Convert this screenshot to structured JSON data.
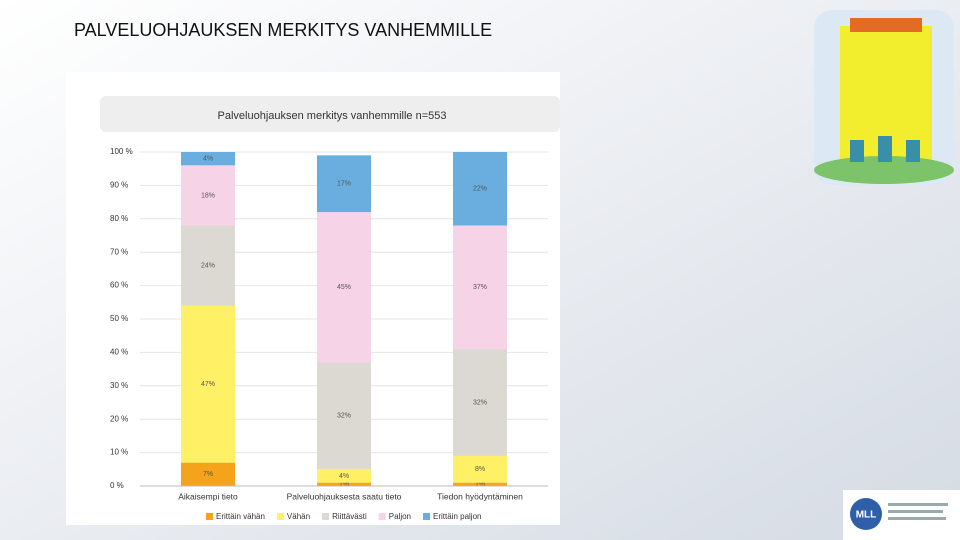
{
  "slide_title": "PALVELUOHJAUKSEN MERKITYS VANHEMMILLE",
  "logo": "MLL",
  "chart_data": {
    "type": "stacked_bar",
    "title": "Palveluohjauksen merkitys vanhemmille n=553",
    "categories": [
      "Aikaisempi tieto",
      "Palveluohjauksesta saatu tieto",
      "Tiedon hyödyntäminen"
    ],
    "series": [
      {
        "name": "Erittäin vähän",
        "color": "#f5a31a",
        "values": [
          7,
          1,
          1
        ],
        "value_labels": [
          "7%",
          "1%",
          "1%"
        ]
      },
      {
        "name": "Vähän",
        "color": "#fff066",
        "values": [
          47,
          4,
          8
        ],
        "value_labels": [
          "47%",
          "4%",
          "8%"
        ]
      },
      {
        "name": "Riittävästi",
        "color": "#dcd8d2",
        "values": [
          24,
          32,
          32
        ],
        "value_labels": [
          "24%",
          "32%",
          "32%"
        ]
      },
      {
        "name": "Paljon",
        "color": "#f7d3e8",
        "values": [
          18,
          45,
          37
        ],
        "value_labels": [
          "18%",
          "45%",
          "37%"
        ]
      },
      {
        "name": "Erittäin paljon",
        "color": "#6aaee0",
        "values": [
          4,
          17,
          22
        ],
        "value_labels": [
          "4%",
          "17%",
          "22%"
        ]
      }
    ],
    "ylim": [
      0,
      100
    ],
    "yticks": [
      {
        "value": 0,
        "label": "0 %"
      },
      {
        "value": 10,
        "label": "10 %"
      },
      {
        "value": 20,
        "label": "20 %"
      },
      {
        "value": 30,
        "label": "30 %"
      },
      {
        "value": 40,
        "label": "40 %"
      },
      {
        "value": 50,
        "label": "50 %"
      },
      {
        "value": 60,
        "label": "60 %"
      },
      {
        "value": 70,
        "label": "70 %"
      },
      {
        "value": 80,
        "label": "80 %"
      },
      {
        "value": 90,
        "label": "90 %"
      },
      {
        "value": 100,
        "label": "100 %"
      }
    ],
    "grid": true
  }
}
